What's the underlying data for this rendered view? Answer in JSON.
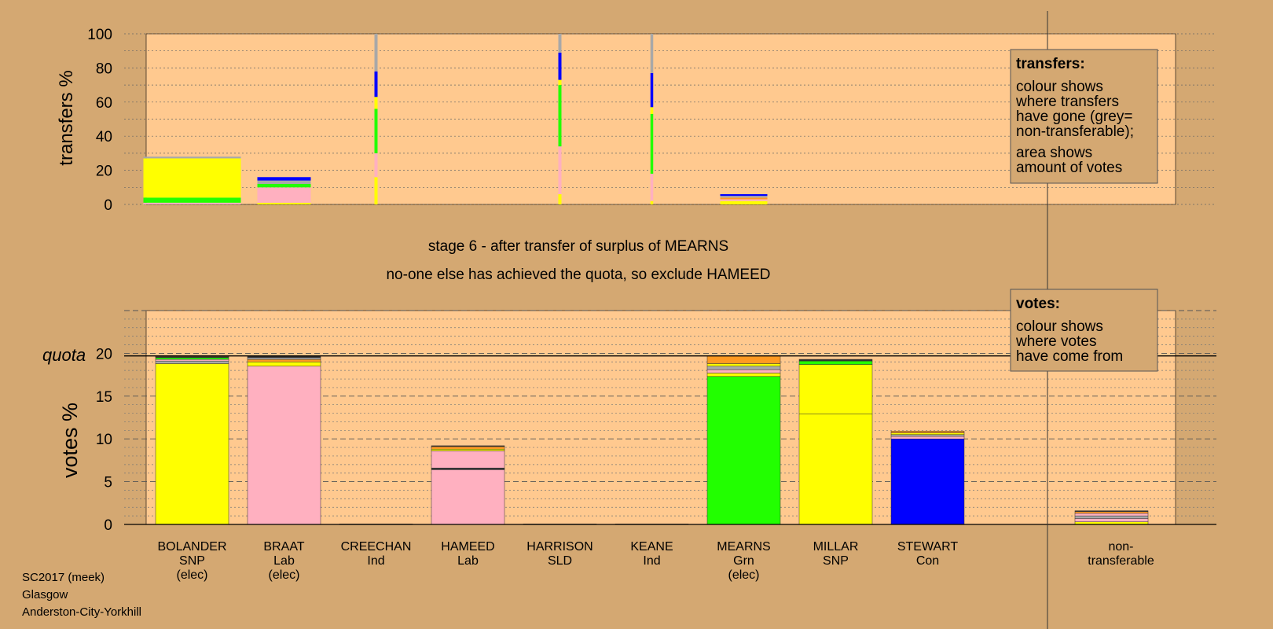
{
  "footer": [
    "SC2017 (meek)",
    "Glasgow",
    "Anderston-City-Yorkhill"
  ],
  "stage_lines": [
    "stage 6 - after transfer of surplus of MEARNS",
    "no-one else has achieved the quota, so exclude HAMEED"
  ],
  "colors": {
    "background": "#d4a872",
    "plot": "#ffc98f",
    "snp": "#ffff00",
    "lab": "#ffb0c0",
    "grn": "#22ff00",
    "con": "#0000ff",
    "grey": "#a8a8a8",
    "orange": "#ff9922",
    "dark": "#333333"
  },
  "chart_data": [
    {
      "type": "bar",
      "id": "transfers",
      "ylabel": "transfers %",
      "ylim": [
        0,
        100
      ],
      "yticks": [
        0,
        20,
        40,
        60,
        80,
        100
      ],
      "grid": true,
      "legend": {
        "title": "transfers:",
        "lines": [
          "colour shows",
          "where transfers",
          "have gone (grey=",
          "non-transferable);",
          "area shows",
          "amount of votes"
        ],
        "placement": "top-right"
      },
      "bars": [
        {
          "candidate": "BOLANDER",
          "width_pct": 3.1,
          "segments": [
            [
              "lab",
              1
            ],
            [
              "grn",
              3
            ],
            [
              "snp",
              23
            ],
            [
              "grey",
              1
            ]
          ]
        },
        {
          "candidate": "BRAAT",
          "width_pct": 1.7,
          "segments": [
            [
              "snp",
              1
            ],
            [
              "lab",
              9
            ],
            [
              "grn",
              2
            ],
            [
              "grey",
              2
            ],
            [
              "con",
              2
            ]
          ]
        },
        {
          "candidate": "CREECHAN",
          "width_pct": 0.1,
          "segments": [
            [
              "snp",
              16
            ],
            [
              "lab",
              14
            ],
            [
              "grn",
              26
            ],
            [
              "snp",
              7
            ],
            [
              "con",
              15
            ],
            [
              "grey",
              22
            ]
          ]
        },
        {
          "candidate": "HARRISON",
          "width_pct": 0.1,
          "segments": [
            [
              "snp",
              6
            ],
            [
              "lab",
              28
            ],
            [
              "grn",
              36
            ],
            [
              "snp",
              3
            ],
            [
              "con",
              16
            ],
            [
              "grey",
              11
            ]
          ]
        },
        {
          "candidate": "KEANE",
          "width_pct": 0.05,
          "segments": [
            [
              "snp",
              2
            ],
            [
              "lab",
              16
            ],
            [
              "grn",
              35
            ],
            [
              "snp",
              4
            ],
            [
              "con",
              20
            ],
            [
              "grey",
              23
            ]
          ]
        },
        {
          "candidate": "MEARNS",
          "width_pct": 1.5,
          "segments": [
            [
              "snp",
              2
            ],
            [
              "lab",
              1
            ],
            [
              "orange",
              1
            ],
            [
              "grey",
              1
            ],
            [
              "con",
              1
            ]
          ]
        }
      ]
    },
    {
      "type": "bar",
      "id": "votes",
      "ylabel": "votes %",
      "ylim": [
        0,
        25
      ],
      "yticks": [
        0,
        5,
        10,
        15,
        20
      ],
      "quota": 19.7,
      "quota_label": "quota",
      "grid": true,
      "legend": {
        "title": "votes:",
        "lines": [
          "colour shows",
          "where votes",
          "have come from"
        ],
        "placement": "top-right"
      },
      "categories": [
        {
          "name": "BOLANDER",
          "party": "SNP",
          "note": "(elec)"
        },
        {
          "name": "BRAAT",
          "party": "Lab",
          "note": "(elec)"
        },
        {
          "name": "CREECHAN",
          "party": "Ind",
          "note": ""
        },
        {
          "name": "HAMEED",
          "party": "Lab",
          "note": ""
        },
        {
          "name": "HARRISON",
          "party": "SLD",
          "note": ""
        },
        {
          "name": "KEANE",
          "party": "Ind",
          "note": ""
        },
        {
          "name": "MEARNS",
          "party": "Grn",
          "note": "(elec)"
        },
        {
          "name": "MILLAR",
          "party": "SNP",
          "note": ""
        },
        {
          "name": "STEWART",
          "party": "Con",
          "note": ""
        }
      ],
      "nontransferable_label": [
        "non-",
        "transferable"
      ],
      "stacks": [
        [
          [
            "snp",
            18.8
          ],
          [
            "grey",
            0.3
          ],
          [
            "lab",
            0.2
          ],
          [
            "grn",
            0.2
          ],
          [
            "dark",
            0.1
          ],
          [
            "orange",
            0.1
          ]
        ],
        [
          [
            "lab",
            18.5
          ],
          [
            "snp",
            0.5
          ],
          [
            "orange",
            0.3
          ],
          [
            "grey",
            0.2
          ],
          [
            "dark",
            0.2
          ]
        ],
        [
          [
            "dark",
            0.05
          ]
        ],
        [
          [
            "lab",
            6.4
          ],
          [
            "dark",
            0.2
          ],
          [
            "lab",
            2.0
          ],
          [
            "snp",
            0.2
          ],
          [
            "orange",
            0.3
          ],
          [
            "dark",
            0.1
          ]
        ],
        [
          [
            "dark",
            0.05
          ]
        ],
        [
          [
            "dark",
            0.05
          ]
        ],
        [
          [
            "grn",
            17.3
          ],
          [
            "snp",
            0.4
          ],
          [
            "lab",
            0.4
          ],
          [
            "grey",
            0.4
          ],
          [
            "snp",
            0.3
          ],
          [
            "orange",
            0.9
          ]
        ],
        [
          [
            "snp",
            12.9
          ],
          [
            "snp",
            5.8
          ],
          [
            "grn",
            0.4
          ],
          [
            "dark",
            0.2
          ]
        ],
        [
          [
            "con",
            10.0
          ],
          [
            "lab",
            0.3
          ],
          [
            "grey",
            0.2
          ],
          [
            "snp",
            0.2
          ],
          [
            "orange",
            0.2
          ]
        ]
      ],
      "nontransferable_stack": [
        [
          "snp",
          0.3
        ],
        [
          "lab",
          0.4
        ],
        [
          "grey",
          0.3
        ],
        [
          "lab",
          0.3
        ],
        [
          "orange",
          0.2
        ],
        [
          "dark",
          0.1
        ]
      ]
    }
  ]
}
